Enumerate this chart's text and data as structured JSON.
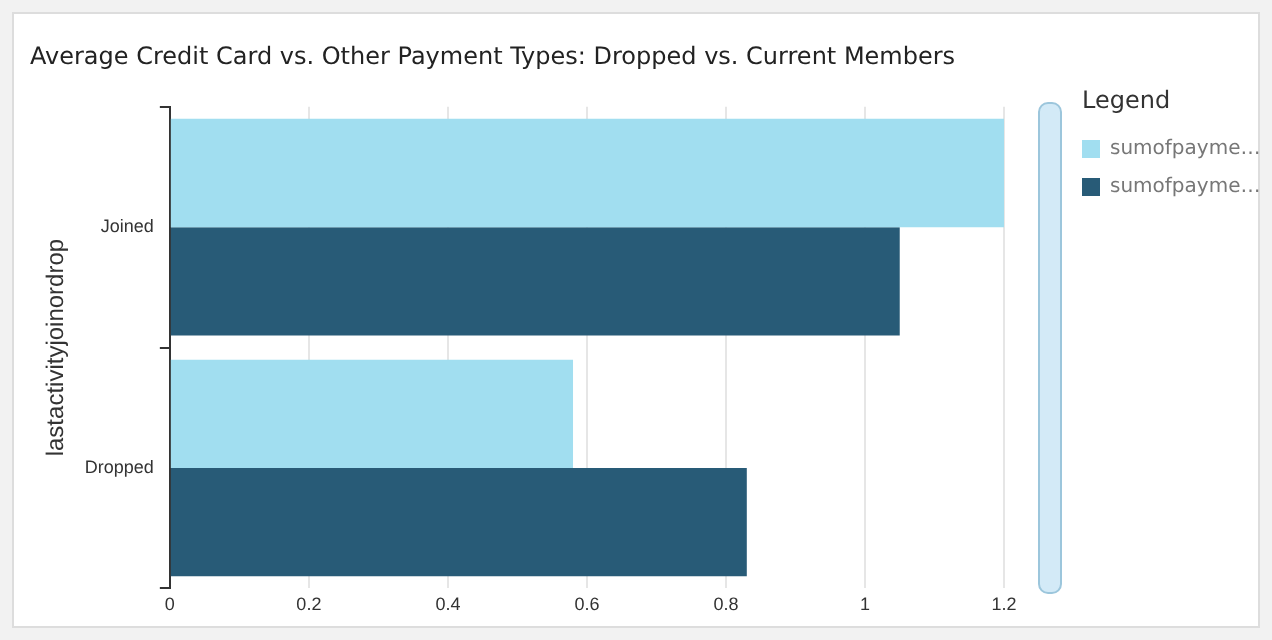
{
  "chart_data": {
    "type": "bar",
    "orientation": "horizontal",
    "title": "Average Credit Card vs. Other Payment Types: Dropped vs. Current Members",
    "ylabel": "lastactivityjoinordrop",
    "legend_title": "Legend",
    "legend": "right",
    "categories": [
      "Joined",
      "Dropped"
    ],
    "series": [
      {
        "name": "sumofpayme…",
        "color": "#a1def0",
        "values": [
          1.2,
          0.58
        ]
      },
      {
        "name": "sumofpayme…",
        "color": "#285b77",
        "values": [
          1.05,
          0.83
        ]
      }
    ],
    "xlim": [
      0,
      1.2
    ],
    "xticks": [
      0,
      0.2,
      0.4,
      0.6,
      0.8,
      1,
      1.2
    ],
    "grid": "x"
  }
}
